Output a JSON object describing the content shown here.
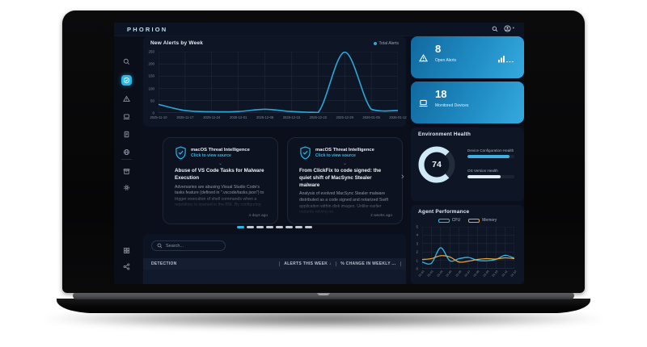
{
  "window": {
    "brand": "PHORION"
  },
  "icons": {
    "sort_down": "↓",
    "next_arrow": "›",
    "expand_chevron": "⌄",
    "user_caret": "▾"
  },
  "chart_data": [
    {
      "type": "line",
      "title": "New Alerts by Week",
      "legend_position": "top-right",
      "categories": [
        "2025-11-10",
        "2025-11-17",
        "2025-11-24",
        "2025-12-01",
        "2025-12-08",
        "2025-12-15",
        "2025-12-22",
        "2025-12-29",
        "2026-01-05",
        "2026-01-12"
      ],
      "series": [
        {
          "name": "Total Alerts",
          "color": "#2aa7d9",
          "values": [
            35,
            10,
            5,
            6,
            15,
            6,
            2,
            248,
            15,
            10
          ]
        }
      ],
      "ylim": [
        0,
        250
      ],
      "yticks": [
        0,
        50,
        100,
        150,
        200,
        250
      ],
      "grid": true
    },
    {
      "type": "line",
      "title": "Agent Performance",
      "legend_position": "top-center",
      "categories": [
        "01-02",
        "01-03",
        "01-04",
        "01-05",
        "01-06",
        "01-07",
        "01-08",
        "01-09",
        "01-10",
        "01-11",
        "01-12"
      ],
      "series": [
        {
          "name": "CPU",
          "color": "#2cb8e8",
          "values": [
            0.8,
            0.65,
            2.5,
            0.95,
            1.2,
            1.35,
            1.0,
            0.95,
            1.1,
            1.6,
            1.25
          ]
        },
        {
          "name": "Memory",
          "color": "#e8a13c",
          "values": [
            1.1,
            1.2,
            1.55,
            1.4,
            0.8,
            0.9,
            1.1,
            1.2,
            1.15,
            1.3,
            1.2
          ]
        }
      ],
      "ylim": [
        0,
        5
      ],
      "yticks": [
        0,
        1,
        2,
        3,
        4,
        5
      ],
      "grid": true
    }
  ],
  "stat_cards": [
    {
      "icon": "warning-triangle-icon",
      "value": "8",
      "label": "Open Alerts",
      "trend_icon": "bar-chart-icon"
    },
    {
      "icon": "laptop-icon",
      "value": "18",
      "label": "Monitored Devices"
    }
  ],
  "environment_health": {
    "title": "Environment Health",
    "gauge_value": "74",
    "metrics": [
      {
        "label": "Device Configuration Health",
        "percent": 90,
        "color": "#3fb0e0"
      },
      {
        "label": "OS Version Health",
        "percent": 70,
        "color": "#e2ecf3"
      }
    ]
  },
  "threat_cards": [
    {
      "source": "macOS Threat Intelligence",
      "link": "Click to view source",
      "title": "Abuse of VS Code Tasks for Malware Execution",
      "body": "Adversaries are abusing Visual Studio Code's tasks feature (defined in \".vscode/tasks.json\") to trigger execution of shell commands when a repository is opened in the IDE. By configuring tasks to",
      "time": "4 days ago"
    },
    {
      "source": "macOS Threat Intelligence",
      "link": "Click to view source",
      "title": "From ClickFix to code signed: the quiet shift of MacSync Stealer malware",
      "body": "Analysis of evolved MacSync Stealer malware distributed as a code signed and notarized Swift application within disk images. Unlike earlier variants relying on",
      "time": "2 weeks ago"
    }
  ],
  "carousel": {
    "count": 8,
    "active_index": 0,
    "active_color": "#29b6e8",
    "dot_color": "#c2c8d1"
  },
  "search": {
    "placeholder": "Search..."
  },
  "detections_table": {
    "columns": [
      {
        "label": "DETECTION"
      },
      {
        "label": "ALERTS THIS WEEK",
        "sort": "↓"
      },
      {
        "label": "% CHANGE IN WEEKLY ..."
      }
    ]
  }
}
